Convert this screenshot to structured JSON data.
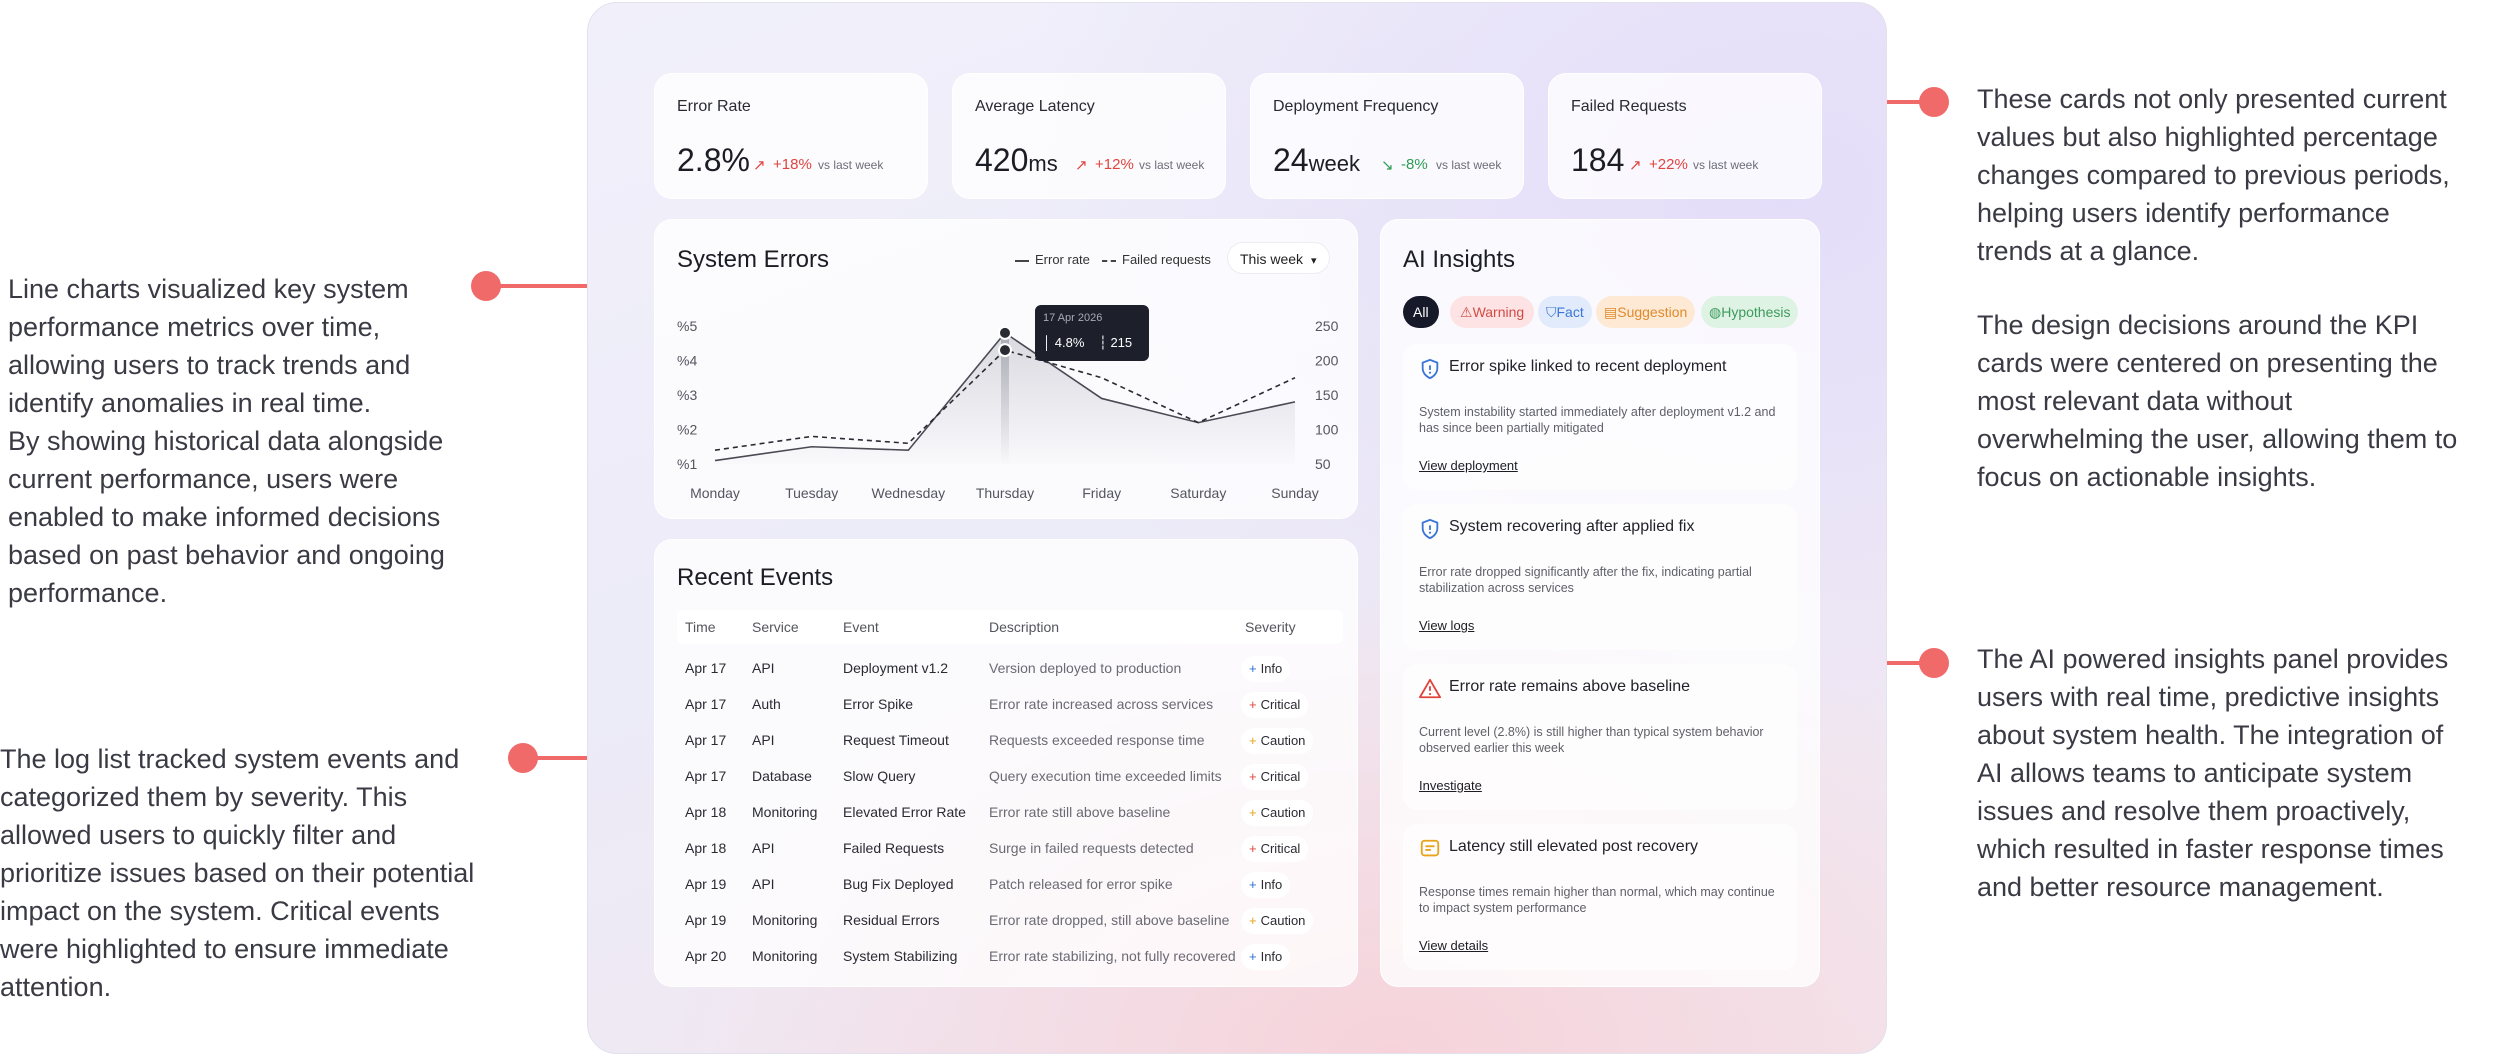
{
  "annotations": {
    "kpi_top": "These cards not only presented current\nvalues but also highlighted percentage\nchanges compared to previous periods,\nhelping users identify performance\ntrends at a glance.",
    "kpi_bottom": "The design decisions around the KPI\ncards were centered on presenting the\nmost relevant data without\noverwhelming the user, allowing them to\nfocus on actionable insights.",
    "chart": "Line charts visualized key system\nperformance metrics over time,\nallowing users to track trends and\nidentify anomalies in real time.\nBy showing historical data alongside\ncurrent performance, users were\nenabled to make informed decisions\nbased on past behavior and ongoing\nperformance.",
    "log": "The log list tracked system events and\ncategorized them by severity. This\nallowed users to quickly filter and\nprioritize issues based on their potential\nimpact on the system. Critical events\nwere highlighted to ensure immediate\nattention.",
    "ai": "The AI powered insights panel provides\nusers with real time, predictive insights\nabout system health. The integration of\nAI allows teams to anticipate system\nissues and resolve them proactively,\nwhich resulted in faster response times\nand better resource management."
  },
  "kpis": [
    {
      "label": "Error Rate",
      "value": "2.8%",
      "unit": "",
      "change": "+18%",
      "dir": "up",
      "vs": "vs last week"
    },
    {
      "label": "Average Latency",
      "value": "420",
      "unit": "ms",
      "change": "+12%",
      "dir": "up",
      "vs": "vs last week"
    },
    {
      "label": "Deployment Frequency",
      "value": "24",
      "unit": "week",
      "change": "-8%",
      "dir": "down",
      "vs": "vs last week"
    },
    {
      "label": "Failed Requests",
      "value": "184",
      "unit": "",
      "change": "+22%",
      "dir": "up",
      "vs": "vs last week"
    }
  ],
  "system_errors": {
    "title": "System Errors",
    "legend_error": "Error rate",
    "legend_failed": "Failed requests",
    "period": "This week",
    "tooltip": {
      "date": "17 Apr 2026",
      "error": "4.8%",
      "failed": "215"
    }
  },
  "chart_data": {
    "type": "line",
    "title": "System Errors",
    "categories": [
      "Monday",
      "Tuesday",
      "Wednesday",
      "Thursday",
      "Friday",
      "Saturday",
      "Sunday"
    ],
    "left_ticks": [
      "%5",
      "%4",
      "%3",
      "%2",
      "%1"
    ],
    "right_ticks": [
      "250",
      "200",
      "150",
      "100",
      "50"
    ],
    "ylim_left": [
      1,
      5
    ],
    "ylim_right": [
      50,
      250
    ],
    "series": [
      {
        "name": "Error rate",
        "axis": "left",
        "style": "solid",
        "values": [
          1.1,
          1.5,
          1.4,
          4.8,
          2.9,
          2.2,
          2.8
        ]
      },
      {
        "name": "Failed requests",
        "axis": "right",
        "style": "dashed",
        "values": [
          70,
          90,
          80,
          215,
          175,
          110,
          175
        ]
      }
    ],
    "legend": "top-right",
    "grid": false
  },
  "events": {
    "title": "Recent Events",
    "headers": [
      "Time",
      "Service",
      "Event",
      "Description",
      "Severity"
    ],
    "rows": [
      {
        "time": "Apr 17",
        "service": "API",
        "event": "Deployment v1.2",
        "desc": "Version deployed to production",
        "sev": "Info"
      },
      {
        "time": "Apr 17",
        "service": "Auth",
        "event": "Error Spike",
        "desc": "Error rate increased across services",
        "sev": "Critical"
      },
      {
        "time": "Apr 17",
        "service": "API",
        "event": "Request Timeout",
        "desc": "Requests exceeded response time",
        "sev": "Caution"
      },
      {
        "time": "Apr 17",
        "service": "Database",
        "event": "Slow Query",
        "desc": "Query execution time exceeded limits",
        "sev": "Critical"
      },
      {
        "time": "Apr 18",
        "service": "Monitoring",
        "event": "Elevated Error Rate",
        "desc": "Error rate still above baseline",
        "sev": "Caution"
      },
      {
        "time": "Apr 18",
        "service": "API",
        "event": "Failed Requests",
        "desc": "Surge in failed requests detected",
        "sev": "Critical"
      },
      {
        "time": "Apr 19",
        "service": "API",
        "event": "Bug Fix Deployed",
        "desc": "Patch released for error spike",
        "sev": "Info"
      },
      {
        "time": "Apr 19",
        "service": "Monitoring",
        "event": "Residual Errors",
        "desc": "Error rate dropped, still above baseline",
        "sev": "Caution"
      },
      {
        "time": "Apr 20",
        "service": "Monitoring",
        "event": "System Stabilizing",
        "desc": "Error rate stabilizing, not fully recovered",
        "sev": "Info"
      }
    ]
  },
  "severity_colors": {
    "Info": "#2f6fd6",
    "Critical": "#e0443e",
    "Caution": "#e9a21b"
  },
  "insights": {
    "title": "AI Insights",
    "filters": [
      "All",
      "Warning",
      "Fact",
      "Suggestion",
      "Hypothesis"
    ],
    "items": [
      {
        "title": "Error spike linked to recent deployment",
        "body": "System instability started immediately after deployment v1.2 and has since been partially mitigated",
        "link": "View deployment",
        "icon": "shield-icon"
      },
      {
        "title": "System recovering after applied fix",
        "body": "Error rate dropped significantly after the fix, indicating partial stabilization across services",
        "link": "View logs",
        "icon": "shield-icon"
      },
      {
        "title": "Error rate remains above baseline",
        "body": "Current level (2.8%) is still higher than typical system behavior observed earlier this week",
        "link": "Investigate",
        "icon": "warning-icon"
      },
      {
        "title": "Latency still elevated post recovery",
        "body": "Response times remain higher than normal, which may continue to impact system performance",
        "link": "View details",
        "icon": "note-icon"
      }
    ]
  },
  "accent_color": "#f06a6a"
}
